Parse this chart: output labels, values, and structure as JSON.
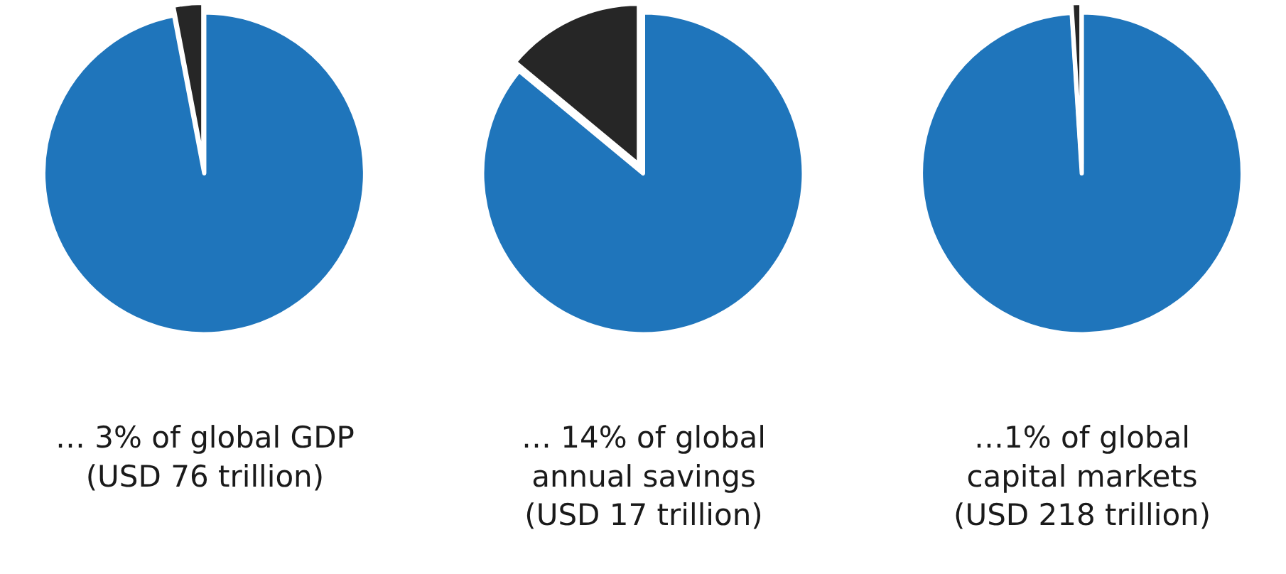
{
  "chart_data": [
    {
      "type": "pie",
      "categories": [
        null,
        null
      ],
      "values": [
        97,
        3
      ],
      "colors": [
        "#1f75bb",
        "#262626"
      ],
      "legend": false,
      "annotations": [
        "… 3% of global GDP\n(USD 76 trillion)"
      ]
    },
    {
      "type": "pie",
      "categories": [
        null,
        null
      ],
      "values": [
        86,
        14
      ],
      "colors": [
        "#1f75bb",
        "#262626"
      ],
      "legend": false,
      "annotations": [
        "… 14% of global\nannual savings\n(USD 17 trillion)"
      ]
    },
    {
      "type": "pie",
      "categories": [
        null,
        null
      ],
      "values": [
        99,
        1
      ],
      "colors": [
        "#1f75bb",
        "#262626"
      ],
      "legend": false,
      "annotations": [
        "…1% of global\ncapital markets\n(USD 218 trillion)"
      ]
    }
  ]
}
